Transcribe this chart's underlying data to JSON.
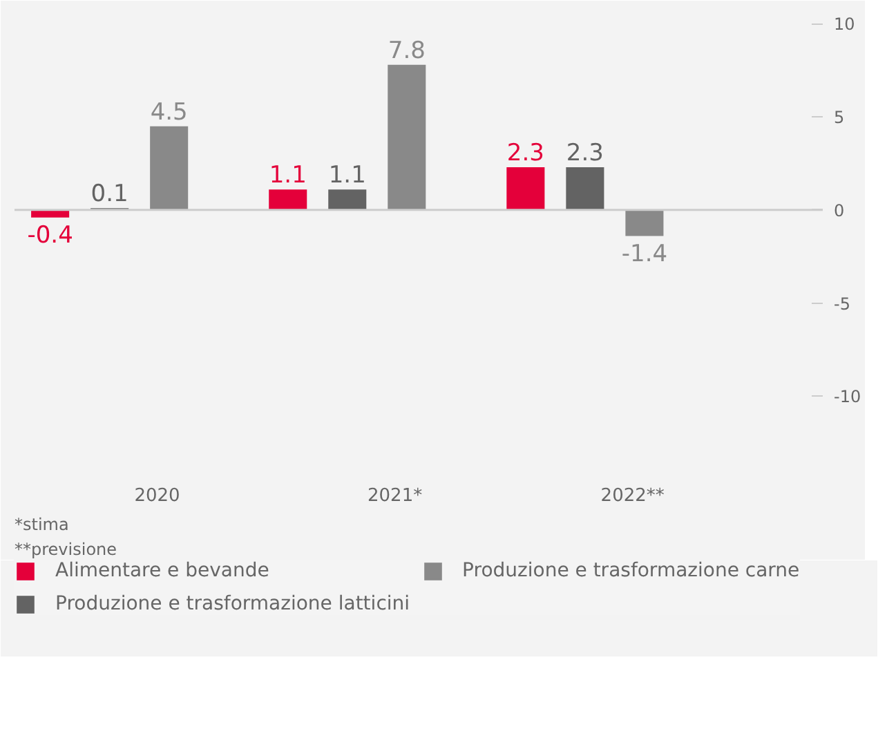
{
  "chart_data": {
    "type": "bar",
    "categories": [
      "2020",
      "2021*",
      "2022**"
    ],
    "series": [
      {
        "name": "Alimentare e bevande",
        "color": "#e4003a",
        "values": [
          -0.4,
          1.1,
          2.3
        ]
      },
      {
        "name": "Produzione e trasformazione latticini",
        "color": "#636363",
        "values": [
          0.1,
          1.1,
          2.3
        ]
      },
      {
        "name": "Produzione e trasformazione carne",
        "color": "#898989",
        "values": [
          4.5,
          7.8,
          -1.4
        ]
      }
    ],
    "ylim": [
      -14,
      10.5
    ],
    "yticks": [
      -10,
      -5,
      0,
      5,
      10
    ],
    "ref_lines": [
      {
        "axis": "y",
        "value": 0,
        "color": "#cccccc"
      }
    ],
    "data_labels": true,
    "grid": false,
    "legend": "bottom",
    "annotations": [
      "*stima",
      "**previsione"
    ]
  }
}
